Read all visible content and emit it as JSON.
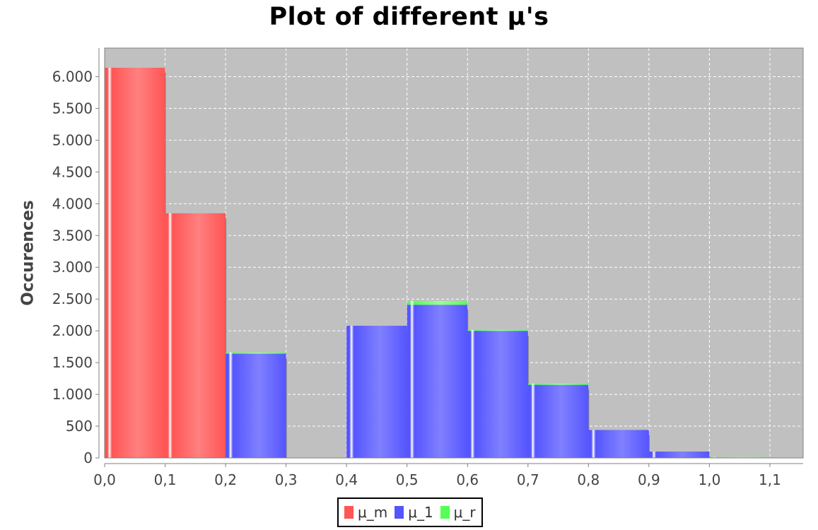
{
  "chart_data": {
    "type": "bar",
    "title": "Plot of different μ's",
    "xlabel": "",
    "ylabel": "Occurences",
    "xlim": [
      0.0,
      1.155
    ],
    "ylim": [
      0,
      6450
    ],
    "x_ticks": [
      0.0,
      0.1,
      0.2,
      0.3,
      0.4,
      0.5,
      0.6,
      0.7,
      0.8,
      0.9,
      1.0,
      1.1
    ],
    "x_tick_labels": [
      "0,0",
      "0,1",
      "0,2",
      "0,3",
      "0,4",
      "0,5",
      "0,6",
      "0,7",
      "0,8",
      "0,9",
      "1,0",
      "1,1"
    ],
    "y_ticks": [
      0,
      500,
      1000,
      1500,
      2000,
      2500,
      3000,
      3500,
      4000,
      4500,
      5000,
      5500,
      6000
    ],
    "y_tick_labels": [
      "0",
      "500",
      "1.000",
      "1.500",
      "2.000",
      "2.500",
      "3.000",
      "3.500",
      "4.000",
      "4.500",
      "5.000",
      "5.500",
      "6.000"
    ],
    "grid": true,
    "legend_position": "bottom",
    "series": [
      {
        "name": "μ_m",
        "color": "#ff5555",
        "bins": [
          {
            "x0": 0.0,
            "x1": 0.1,
            "value": 6140
          },
          {
            "x0": 0.1,
            "x1": 0.2,
            "value": 3850
          }
        ]
      },
      {
        "name": "μ_1",
        "color": "#5555ff",
        "bins": [
          {
            "x0": 0.2,
            "x1": 0.3,
            "value": 1640
          },
          {
            "x0": 0.4,
            "x1": 0.5,
            "value": 2080
          },
          {
            "x0": 0.5,
            "x1": 0.6,
            "value": 2410
          },
          {
            "x0": 0.6,
            "x1": 0.7,
            "value": 2000
          },
          {
            "x0": 0.7,
            "x1": 0.8,
            "value": 1150
          },
          {
            "x0": 0.8,
            "x1": 0.9,
            "value": 440
          },
          {
            "x0": 0.9,
            "x1": 1.0,
            "value": 100
          },
          {
            "x0": 1.0,
            "x1": 1.1,
            "value": 5
          }
        ]
      },
      {
        "name": "μ_r",
        "color": "#55ff55",
        "bins": [
          {
            "x0": 0.2,
            "x1": 0.3,
            "value": 20
          },
          {
            "x0": 0.5,
            "x1": 0.6,
            "value": 60
          },
          {
            "x0": 0.6,
            "x1": 0.7,
            "value": 15
          },
          {
            "x0": 0.7,
            "x1": 0.8,
            "value": 20
          },
          {
            "x0": 1.0,
            "x1": 1.1,
            "value": 10
          }
        ]
      }
    ]
  },
  "colors": {
    "plot_background": "#c0c0c0",
    "gridline": "#ffffff",
    "shadow": "#808080"
  }
}
